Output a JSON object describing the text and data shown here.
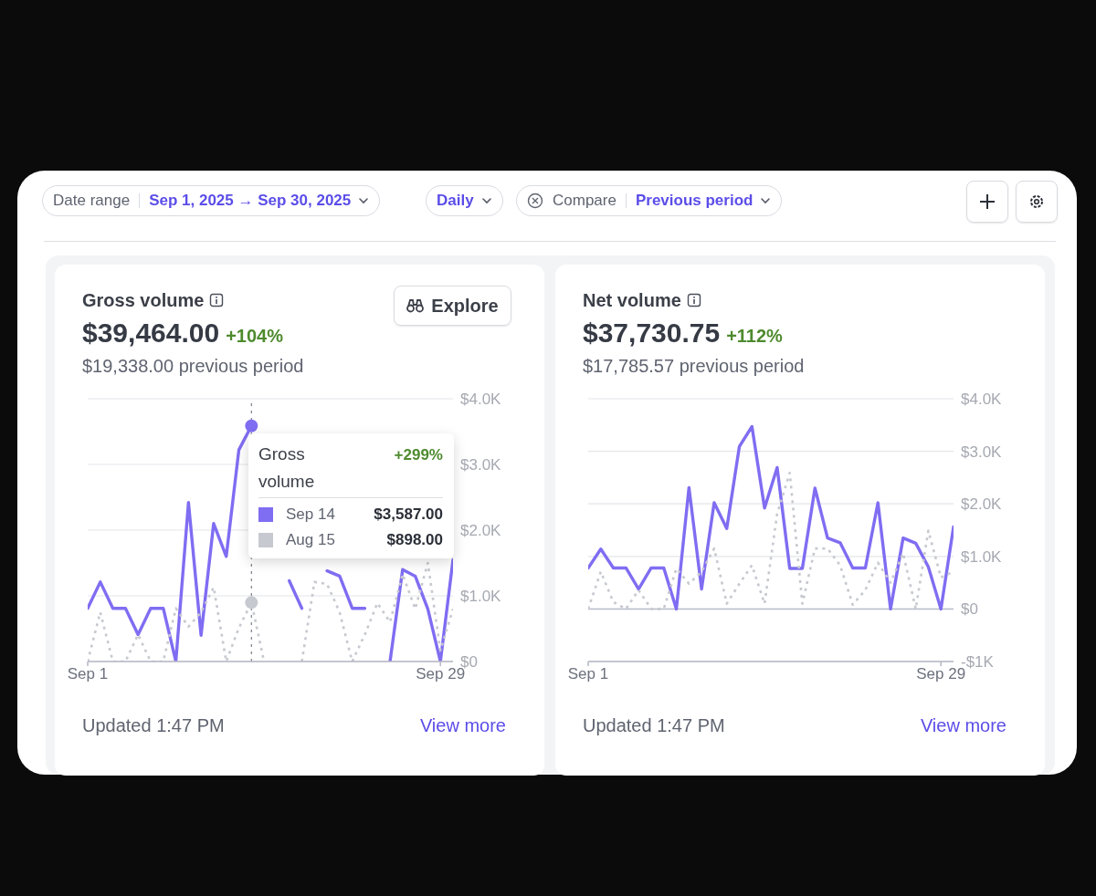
{
  "chart_data": [
    {
      "type": "line",
      "title": "Gross volume",
      "annotations": [
        "$39,464.00",
        "+104%",
        "$19,338.00 previous period",
        "Updated 1:47 PM",
        "View more",
        "Explore",
        "Date range",
        "Sep 1, 2025 → Sep 30, 2025",
        "Daily",
        "Compare",
        "Previous period",
        "+299%",
        "Sep 14",
        "Aug 15",
        "$3,587.00",
        "$898.00"
      ],
      "x": [
        "2025-09-01",
        "2025-09-02",
        "2025-09-03",
        "2025-09-04",
        "2025-09-05",
        "2025-09-06",
        "2025-09-07",
        "2025-09-08",
        "2025-09-09",
        "2025-09-10",
        "2025-09-11",
        "2025-09-12",
        "2025-09-13",
        "2025-09-14",
        "2025-09-15",
        "2025-09-16",
        "2025-09-17",
        "2025-09-18",
        "2025-09-19",
        "2025-09-20",
        "2025-09-21",
        "2025-09-22",
        "2025-09-23",
        "2025-09-24",
        "2025-09-25",
        "2025-09-26",
        "2025-09-27",
        "2025-09-28",
        "2025-09-29",
        "2025-09-30"
      ],
      "series": [
        {
          "color": "#7f6df2",
          "line_style": "solid",
          "values": [
            810,
            1210,
            810,
            810,
            410,
            810,
            810,
            0,
            2420,
            400,
            2100,
            1600,
            3220,
            3587,
            null,
            null,
            1230,
            810,
            null,
            1380,
            1300,
            810,
            810,
            null,
            0,
            1400,
            1300,
            800,
            0,
            1550
          ]
        },
        {
          "color": "#c6c9cf",
          "line_style": "dotted",
          "values": [
            0,
            750,
            0,
            0,
            410,
            0,
            0,
            810,
            530,
            750,
            1130,
            0,
            510,
            898,
            0,
            null,
            null,
            0,
            1210,
            1180,
            750,
            0,
            410,
            890,
            600,
            1330,
            800,
            1500,
            170,
            800
          ]
        }
      ],
      "xlim": [
        "2025-09-01",
        "2025-09-30"
      ],
      "xticks": [
        {
          "value": "2025-09-01",
          "label": "Sep 1"
        },
        {
          "value": "2025-09-29",
          "label": "Sep 29"
        }
      ],
      "ylim": [
        0,
        4000
      ],
      "yticks": [
        {
          "value": 0,
          "label": "$0"
        },
        {
          "value": 1000,
          "label": "$1.0K"
        },
        {
          "value": 2000,
          "label": "$2.0K"
        },
        {
          "value": 3000,
          "label": "$3.0K"
        },
        {
          "value": 4000,
          "label": "$4.0K"
        }
      ],
      "ref_lines": [
        {
          "axis": "x",
          "value": "2025-09-14",
          "color": "#7a7f8c",
          "line_style": "dotted"
        }
      ],
      "grid": "y",
      "marker": "none"
    },
    {
      "type": "line",
      "title": "Net volume",
      "annotations": [
        "$37,730.75",
        "+112%",
        "$17,785.57 previous period",
        "Updated 1:47 PM",
        "View more"
      ],
      "x": [
        "2025-09-01",
        "2025-09-02",
        "2025-09-03",
        "2025-09-04",
        "2025-09-05",
        "2025-09-06",
        "2025-09-07",
        "2025-09-08",
        "2025-09-09",
        "2025-09-10",
        "2025-09-11",
        "2025-09-12",
        "2025-09-13",
        "2025-09-14",
        "2025-09-15",
        "2025-09-16",
        "2025-09-17",
        "2025-09-18",
        "2025-09-19",
        "2025-09-20",
        "2025-09-21",
        "2025-09-22",
        "2025-09-23",
        "2025-09-24",
        "2025-09-25",
        "2025-09-26",
        "2025-09-27",
        "2025-09-28",
        "2025-09-29",
        "2025-09-30"
      ],
      "series": [
        {
          "color": "#7f6df2",
          "line_style": "solid",
          "values": [
            780,
            1140,
            780,
            780,
            380,
            780,
            780,
            0,
            2310,
            380,
            2020,
            1530,
            3090,
            3470,
            1920,
            2690,
            770,
            770,
            2300,
            1350,
            1260,
            780,
            780,
            2020,
            0,
            1350,
            1250,
            800,
            0,
            1560
          ]
        },
        {
          "color": "#c6c9cf",
          "line_style": "dotted",
          "values": [
            0,
            710,
            130,
            0,
            360,
            0,
            0,
            770,
            480,
            710,
            1150,
            100,
            480,
            830,
            100,
            1810,
            2590,
            100,
            1150,
            1150,
            830,
            80,
            360,
            880,
            500,
            1060,
            0,
            1490,
            600,
            710
          ]
        }
      ],
      "xlim": [
        "2025-09-01",
        "2025-09-30"
      ],
      "xticks": [
        {
          "value": "2025-09-01",
          "label": "Sep 1"
        },
        {
          "value": "2025-09-29",
          "label": "Sep 29"
        }
      ],
      "ylim": [
        -1000,
        4000
      ],
      "yticks": [
        {
          "value": -1000,
          "label": "-$1K"
        },
        {
          "value": 0,
          "label": "$0"
        },
        {
          "value": 1000,
          "label": "$1.0K"
        },
        {
          "value": 2000,
          "label": "$2.0K"
        },
        {
          "value": 3000,
          "label": "$3.0K"
        },
        {
          "value": 4000,
          "label": "$4.0K"
        }
      ],
      "ref_lines": [
        {
          "axis": "y",
          "value": 0,
          "color": "#b9bccb",
          "line_style": "solid"
        }
      ],
      "grid": "y",
      "marker": "none"
    }
  ]
}
